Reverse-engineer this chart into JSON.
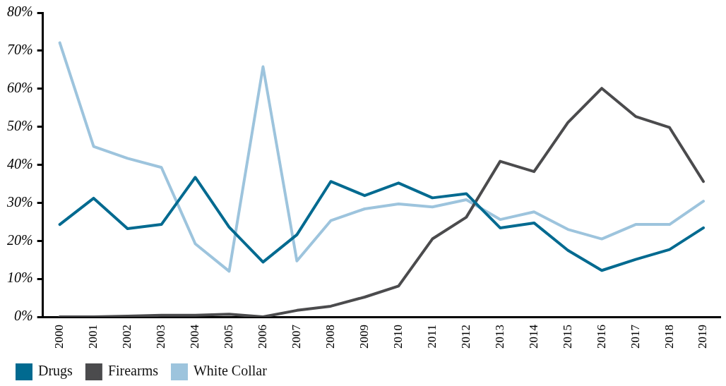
{
  "chart_data": {
    "type": "line",
    "categories": [
      "2000",
      "2001",
      "2002",
      "2003",
      "2004",
      "2005",
      "2006",
      "2007",
      "2008",
      "2009",
      "2010",
      "2011",
      "2012",
      "2013",
      "2014",
      "2015",
      "2016",
      "2017",
      "2018",
      "2019"
    ],
    "series": [
      {
        "name": "Drugs",
        "color": "#016a90",
        "values": [
          24.3,
          31.2,
          23.2,
          24.3,
          36.7,
          23.6,
          14.4,
          21.6,
          35.6,
          31.9,
          35.2,
          31.3,
          32.4,
          23.4,
          24.7,
          17.5,
          12.2,
          15.1,
          17.7,
          23.4
        ]
      },
      {
        "name": "Firearms",
        "color": "#4b4b4d",
        "values": [
          0,
          0,
          0.2,
          0.4,
          0.4,
          0.7,
          0,
          1.7,
          2.8,
          5.2,
          8.1,
          20.5,
          26.2,
          40.9,
          38.2,
          51.1,
          60.1,
          52.7,
          49.8,
          35.6
        ]
      },
      {
        "name": "White Collar",
        "color": "#9dc4dd",
        "values": [
          72.1,
          44.8,
          41.7,
          39.3,
          19.2,
          12.0,
          65.8,
          14.7,
          25.3,
          28.4,
          29.7,
          28.9,
          30.8,
          25.6,
          27.6,
          23.0,
          20.5,
          24.3,
          24.3,
          30.4
        ]
      }
    ],
    "ylim": [
      0,
      80
    ],
    "yticks": [
      {
        "value": 0,
        "label": "0%"
      },
      {
        "value": 10,
        "label": "10%"
      },
      {
        "value": 20,
        "label": "20%"
      },
      {
        "value": 30,
        "label": "30%"
      },
      {
        "value": 40,
        "label": "40%"
      },
      {
        "value": 50,
        "label": "50%"
      },
      {
        "value": 60,
        "label": "60%"
      },
      {
        "value": 70,
        "label": "70%"
      },
      {
        "value": 80,
        "label": "80%"
      }
    ],
    "grid": false,
    "legend": "bottom left",
    "marker": "none",
    "line_style": "solid"
  }
}
